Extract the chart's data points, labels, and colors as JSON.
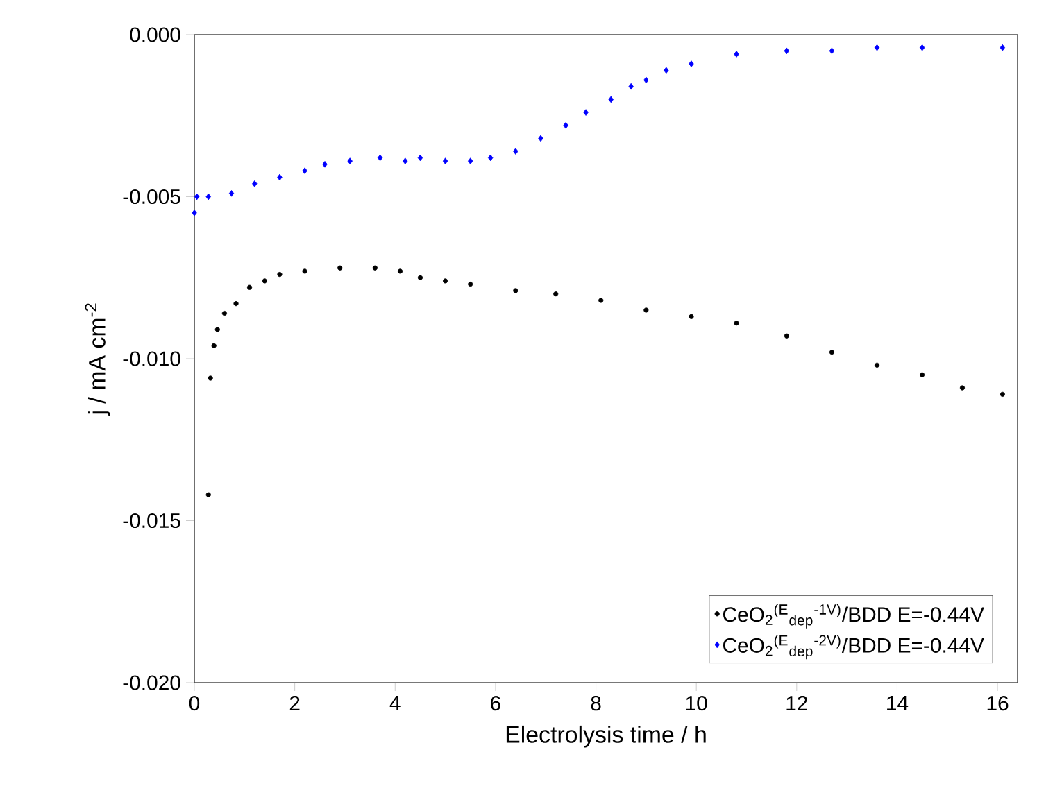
{
  "chart_data": {
    "type": "scatter",
    "xlabel": "Electrolysis time /  h",
    "ylabel": "j  / mA cm$^{-2}$",
    "xlim": [
      0,
      16.4
    ],
    "ylim": [
      -0.02,
      0
    ],
    "xticks": [
      0,
      2,
      4,
      6,
      8,
      10,
      12,
      14,
      16
    ],
    "yticks": [
      {
        "value": -0.02,
        "label": "-0.020"
      },
      {
        "value": -0.015,
        "label": "-0.015"
      },
      {
        "value": -0.01,
        "label": "-0.010"
      },
      {
        "value": -0.005,
        "label": "-0.005"
      },
      {
        "value": 0,
        "label": "0.000"
      }
    ],
    "legend": "bottom right",
    "series": [
      {
        "name": "CeO$_{2}$$^{(E}$$_{dep}$$^{-1V)}$/BDD E=-0.44V",
        "color": "#000000",
        "marker": "circle",
        "x": [
          0.28,
          0.32,
          0.39,
          0.46,
          0.6,
          0.83,
          1.1,
          1.4,
          1.7,
          2.2,
          2.9,
          3.6,
          4.1,
          4.5,
          5.0,
          5.5,
          6.4,
          7.2,
          8.1,
          9.0,
          9.9,
          10.8,
          11.8,
          12.7,
          13.6,
          14.5,
          15.3,
          16.1
        ],
        "values": [
          -0.0142,
          -0.0106,
          -0.0096,
          -0.0091,
          -0.0086,
          -0.0083,
          -0.0078,
          -0.0076,
          -0.0074,
          -0.0073,
          -0.0072,
          -0.0072,
          -0.0073,
          -0.0075,
          -0.0076,
          -0.0077,
          -0.0079,
          -0.008,
          -0.0082,
          -0.0085,
          -0.0087,
          -0.0089,
          -0.0093,
          -0.0098,
          -0.0102,
          -0.0105,
          -0.0109,
          -0.0111
        ]
      },
      {
        "name": "CeO$_{2}$$^{(E}$$_{dep}$$^{-2V)}$/BDD E=-0.44V",
        "color": "#0000ff",
        "marker": "diamond",
        "x": [
          0.0,
          0.05,
          0.28,
          0.74,
          1.2,
          1.7,
          2.2,
          2.6,
          3.1,
          3.7,
          4.2,
          4.5,
          5.0,
          5.5,
          5.9,
          6.4,
          6.9,
          7.4,
          7.8,
          8.3,
          8.7,
          9.0,
          9.4,
          9.9,
          10.8,
          11.8,
          12.7,
          13.6,
          14.5,
          16.1
        ],
        "values": [
          -0.0055,
          -0.005,
          -0.005,
          -0.0049,
          -0.0046,
          -0.0044,
          -0.0042,
          -0.004,
          -0.0039,
          -0.0038,
          -0.0039,
          -0.0038,
          -0.0039,
          -0.0039,
          -0.0038,
          -0.0036,
          -0.0032,
          -0.0028,
          -0.0024,
          -0.002,
          -0.0016,
          -0.0014,
          -0.0011,
          -0.0009,
          -0.0006,
          -0.0005,
          -0.0005,
          -0.0004,
          -0.0004,
          -0.0004
        ]
      }
    ]
  }
}
